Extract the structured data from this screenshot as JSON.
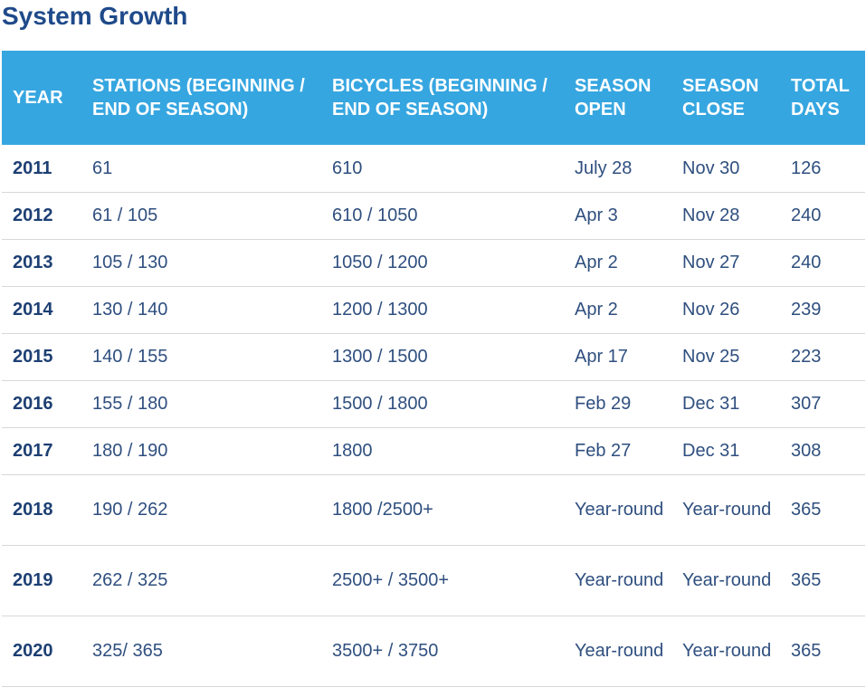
{
  "title": "System Growth",
  "headers": {
    "year": "YEAR",
    "stations": "STATIONS (BEGINNING / END OF SEASON)",
    "bicycles": "BICYCLES (BEGINNING / END OF SEASON)",
    "season_open": "SEASON OPEN",
    "season_close": "SEASON CLOSE",
    "total_days": "TOTAL DAYS"
  },
  "rows": [
    {
      "year": "2011",
      "stations": "61",
      "bicycles": "610",
      "open": "July 28",
      "close": "Nov 30",
      "days": "126"
    },
    {
      "year": "2012",
      "stations": "61 / 105",
      "bicycles": "610 / 1050",
      "open": "Apr 3",
      "close": "Nov 28",
      "days": "240"
    },
    {
      "year": "2013",
      "stations": "105 / 130",
      "bicycles": "1050 / 1200",
      "open": "Apr 2",
      "close": "Nov 27",
      "days": "240"
    },
    {
      "year": "2014",
      "stations": "130 / 140",
      "bicycles": "1200 / 1300",
      "open": "Apr 2",
      "close": "Nov 26",
      "days": "239"
    },
    {
      "year": "2015",
      "stations": "140 / 155",
      "bicycles": "1300 / 1500",
      "open": "Apr 17",
      "close": "Nov 25",
      "days": "223"
    },
    {
      "year": "2016",
      "stations": "155 / 180",
      "bicycles": "1500 / 1800",
      "open": "Feb 29",
      "close": "Dec 31",
      "days": "307"
    },
    {
      "year": "2017",
      "stations": "180 / 190",
      "bicycles": "1800",
      "open": "Feb 27",
      "close": "Dec 31",
      "days": "308"
    },
    {
      "year": "2018",
      "stations": "190 / 262",
      "bicycles": "1800 /2500+",
      "open": "Year-round",
      "close": "Year-round",
      "days": "365"
    },
    {
      "year": "2019",
      "stations": "262 / 325",
      "bicycles": "2500+ / 3500+",
      "open": "Year-round",
      "close": "Year-round",
      "days": "365"
    },
    {
      "year": "2020",
      "stations": "325/ 365",
      "bicycles": "3500+ / 3750",
      "open": "Year-round",
      "close": "Year-round",
      "days": "365"
    }
  ],
  "colors": {
    "header_bg": "#36a6e0",
    "title": "#1f4a8a",
    "text": "#2f4f7f"
  }
}
